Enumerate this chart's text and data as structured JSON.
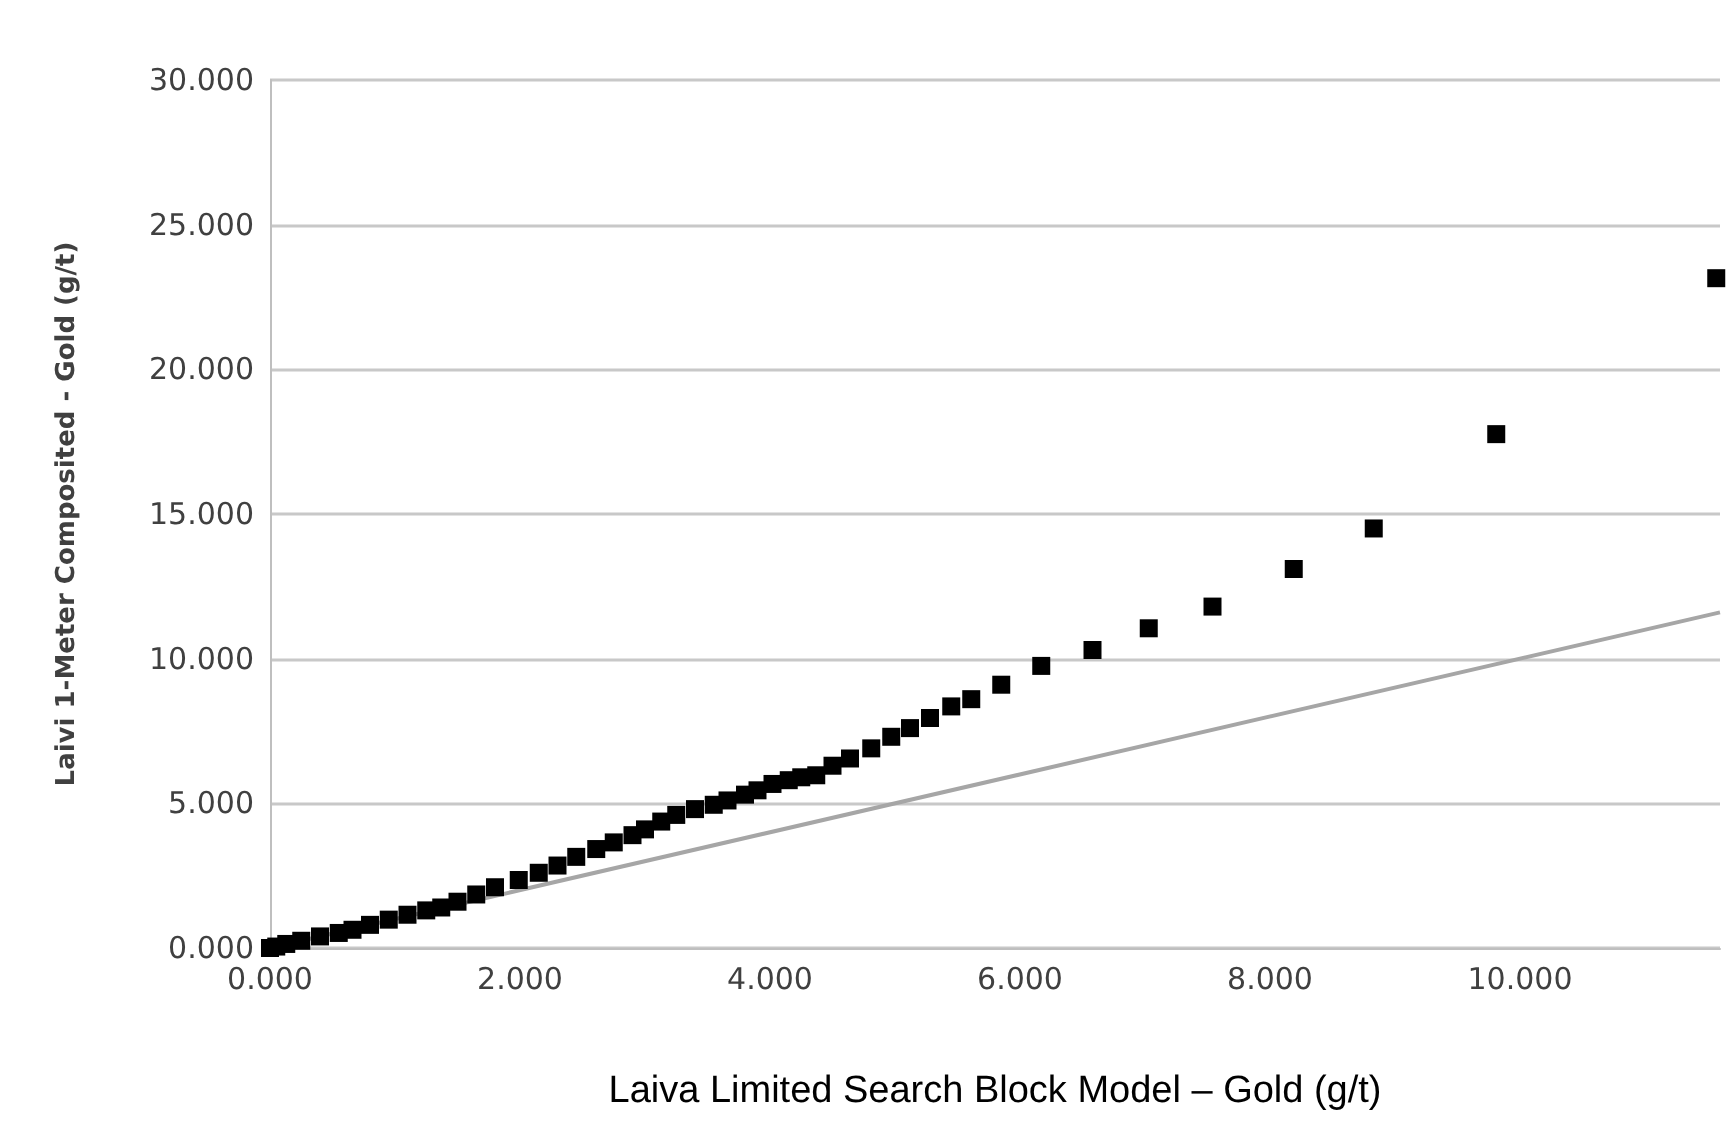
{
  "chart_data": {
    "type": "scatter",
    "xlabel": "Laiva Limited Search Block Model – Gold (g/t)",
    "ylabel": "Laivi 1-Meter Composited - Gold (g/t)",
    "xlim": [
      0,
      11.6
    ],
    "ylim": [
      0,
      30
    ],
    "xticks": [
      {
        "value": 0,
        "label": "0.000"
      },
      {
        "value": 2,
        "label": "2.000"
      },
      {
        "value": 4,
        "label": "4.000"
      },
      {
        "value": 6,
        "label": "6.000"
      },
      {
        "value": 8,
        "label": "8.000"
      },
      {
        "value": 10,
        "label": "10.000"
      }
    ],
    "yticks": [
      {
        "value": 0,
        "label": "0.000"
      },
      {
        "value": 5,
        "label": "5.000"
      },
      {
        "value": 10,
        "label": "10.000"
      },
      {
        "value": 15,
        "label": "15.000"
      },
      {
        "value": 20,
        "label": "20.000"
      },
      {
        "value": 25,
        "label": "25.000"
      },
      {
        "value": 30,
        "label": "30.000"
      }
    ],
    "grid": "y",
    "marker": "square",
    "series": [
      {
        "color": "#000000",
        "x": [
          0,
          0.05,
          0.13,
          0.25,
          0.4,
          0.55,
          0.66,
          0.8,
          0.95,
          1.1,
          1.25,
          1.37,
          1.5,
          1.65,
          1.8,
          1.99,
          2.15,
          2.3,
          2.45,
          2.61,
          2.75,
          2.9,
          3.0,
          3.13,
          3.25,
          3.4,
          3.55,
          3.66,
          3.8,
          3.9,
          4.02,
          4.15,
          4.25,
          4.37,
          4.5,
          4.64,
          4.81,
          4.97,
          5.12,
          5.28,
          5.45,
          5.61,
          5.85,
          6.17,
          6.58,
          7.03,
          7.54,
          8.19,
          8.83,
          9.81,
          11.57
        ],
        "values": [
          0,
          0.05,
          0.14,
          0.25,
          0.4,
          0.52,
          0.63,
          0.8,
          0.98,
          1.15,
          1.3,
          1.4,
          1.6,
          1.85,
          2.1,
          2.35,
          2.6,
          2.85,
          3.15,
          3.42,
          3.65,
          3.9,
          4.1,
          4.37,
          4.6,
          4.8,
          4.95,
          5.1,
          5.3,
          5.45,
          5.67,
          5.8,
          5.9,
          5.97,
          6.3,
          6.55,
          6.9,
          7.3,
          7.6,
          7.95,
          8.35,
          8.6,
          9.1,
          9.75,
          10.3,
          11.05,
          11.8,
          13.1,
          14.5,
          17.76,
          23.15
        ]
      },
      {
        "type": "line",
        "color": "#a6a6a6",
        "marker": "none",
        "x": [
          0,
          11.6
        ],
        "values": [
          0,
          11.6
        ]
      }
    ]
  }
}
